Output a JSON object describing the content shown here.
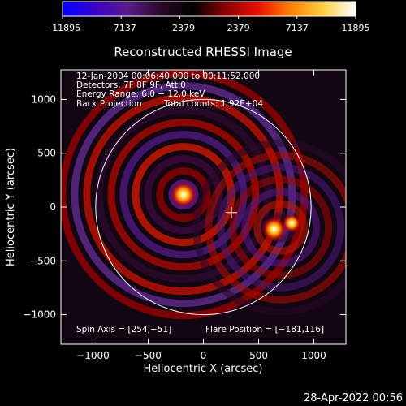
{
  "chart_data": {
    "type": "heatmap",
    "title": "Reconstructed RHESSI Image",
    "xlabel": "Heliocentric X (arcsec)",
    "ylabel": "Heliocentric Y (arcsec)",
    "xlim": [
      -1290,
      1290
    ],
    "ylim": [
      -1275,
      1275
    ],
    "xticks": [
      -1000,
      -500,
      0,
      500,
      1000
    ],
    "yticks": [
      -1000,
      -500,
      0,
      500,
      1000
    ],
    "xtick_labels": [
      "−1000",
      "−500",
      "0",
      "500",
      "1000"
    ],
    "ytick_labels": [
      "−1000",
      "−500",
      "0",
      "500",
      "1000"
    ],
    "colorbar": {
      "min": -11895,
      "max": 11895,
      "ticks": [
        "−11895",
        "−7137",
        "−2379",
        "2379",
        "7137",
        "11895"
      ],
      "colors": [
        "#0000ff",
        "#3a00c8",
        "#5a1a8a",
        "#2a0a2a",
        "#000000",
        "#8a0000",
        "#e81000",
        "#ff8000",
        "#ffd040",
        "#ffffff"
      ]
    },
    "annotations": [
      "12-Jan-2004 00:06:40.000 to 00:11:52.000",
      "Detectors: 7F 8F 9F, Att 0",
      "Energy Range: 6.0 − 12.0 keV",
      "Back Projection",
      "Total counts: 1.92E+04"
    ],
    "footer_left": "Spin Axis = [254,−51]",
    "footer_right": "Flare Position = [−181,116]",
    "solar_limb_radius_arcsec": 975,
    "spin_axis": [
      254,
      -51
    ],
    "sources": [
      {
        "x": -181,
        "y": 116,
        "peak": 11895
      },
      {
        "x": 640,
        "y": -205,
        "peak": 10800
      },
      {
        "x": 800,
        "y": -150,
        "peak": 6500
      }
    ]
  },
  "timestamp": "28-Apr-2022 00:56"
}
